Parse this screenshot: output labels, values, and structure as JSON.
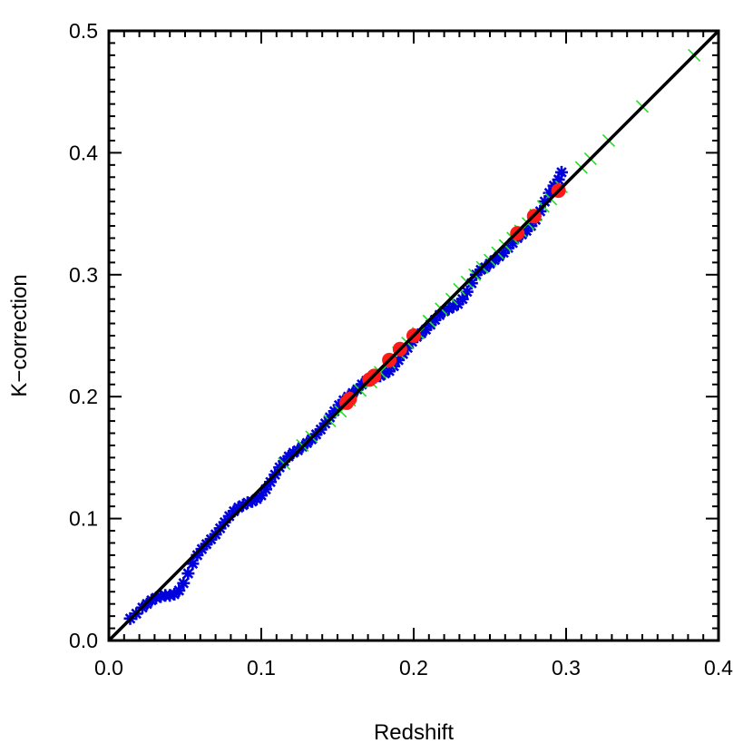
{
  "chart_data": {
    "type": "scatter",
    "title": "",
    "xlabel": "Redshift",
    "ylabel": "K−correction",
    "xlim": [
      0.0,
      0.4
    ],
    "ylim": [
      0.0,
      0.5
    ],
    "x_ticks": [
      "0.0",
      "0.1",
      "0.2",
      "0.3",
      "0.4"
    ],
    "y_ticks": [
      "0.0",
      "0.1",
      "0.2",
      "0.3",
      "0.4",
      "0.5"
    ],
    "grid": false,
    "legend": "none",
    "reference_line": {
      "from": [
        0.0,
        0.0
      ],
      "to": [
        0.4,
        0.5
      ],
      "color": "#000000"
    },
    "series": [
      {
        "marker": "asterisk",
        "color": "#0000dd",
        "points": [
          [
            0.014,
            0.018
          ],
          [
            0.018,
            0.022
          ],
          [
            0.022,
            0.027
          ],
          [
            0.025,
            0.03
          ],
          [
            0.028,
            0.033
          ],
          [
            0.031,
            0.035
          ],
          [
            0.034,
            0.036
          ],
          [
            0.037,
            0.037
          ],
          [
            0.04,
            0.037
          ],
          [
            0.043,
            0.038
          ],
          [
            0.046,
            0.041
          ],
          [
            0.049,
            0.047
          ],
          [
            0.052,
            0.055
          ],
          [
            0.055,
            0.063
          ],
          [
            0.058,
            0.07
          ],
          [
            0.061,
            0.075
          ],
          [
            0.064,
            0.079
          ],
          [
            0.067,
            0.083
          ],
          [
            0.07,
            0.087
          ],
          [
            0.073,
            0.092
          ],
          [
            0.076,
            0.097
          ],
          [
            0.079,
            0.102
          ],
          [
            0.082,
            0.106
          ],
          [
            0.085,
            0.109
          ],
          [
            0.088,
            0.111
          ],
          [
            0.091,
            0.113
          ],
          [
            0.094,
            0.114
          ],
          [
            0.097,
            0.116
          ],
          [
            0.1,
            0.119
          ],
          [
            0.103,
            0.124
          ],
          [
            0.106,
            0.13
          ],
          [
            0.109,
            0.136
          ],
          [
            0.112,
            0.142
          ],
          [
            0.115,
            0.147
          ],
          [
            0.118,
            0.151
          ],
          [
            0.121,
            0.154
          ],
          [
            0.124,
            0.156
          ],
          [
            0.127,
            0.159
          ],
          [
            0.13,
            0.162
          ],
          [
            0.133,
            0.165
          ],
          [
            0.136,
            0.169
          ],
          [
            0.139,
            0.173
          ],
          [
            0.142,
            0.178
          ],
          [
            0.145,
            0.183
          ],
          [
            0.148,
            0.188
          ],
          [
            0.151,
            0.193
          ],
          [
            0.154,
            0.197
          ],
          [
            0.157,
            0.2
          ],
          [
            0.16,
            0.203
          ],
          [
            0.163,
            0.206
          ],
          [
            0.166,
            0.21
          ],
          [
            0.169,
            0.213
          ],
          [
            0.172,
            0.215
          ],
          [
            0.175,
            0.216
          ],
          [
            0.178,
            0.217
          ],
          [
            0.181,
            0.219
          ],
          [
            0.184,
            0.221
          ],
          [
            0.187,
            0.225
          ],
          [
            0.19,
            0.23
          ],
          [
            0.193,
            0.235
          ],
          [
            0.196,
            0.24
          ],
          [
            0.199,
            0.245
          ],
          [
            0.202,
            0.249
          ],
          [
            0.205,
            0.252
          ],
          [
            0.208,
            0.255
          ],
          [
            0.211,
            0.259
          ],
          [
            0.214,
            0.263
          ],
          [
            0.217,
            0.267
          ],
          [
            0.22,
            0.27
          ],
          [
            0.223,
            0.272
          ],
          [
            0.226,
            0.274
          ],
          [
            0.229,
            0.276
          ],
          [
            0.232,
            0.28
          ],
          [
            0.235,
            0.286
          ],
          [
            0.238,
            0.293
          ],
          [
            0.241,
            0.3
          ],
          [
            0.244,
            0.304
          ],
          [
            0.247,
            0.306
          ],
          [
            0.25,
            0.309
          ],
          [
            0.253,
            0.312
          ],
          [
            0.256,
            0.315
          ],
          [
            0.259,
            0.318
          ],
          [
            0.262,
            0.322
          ],
          [
            0.265,
            0.326
          ],
          [
            0.268,
            0.33
          ],
          [
            0.271,
            0.333
          ],
          [
            0.274,
            0.336
          ],
          [
            0.277,
            0.34
          ],
          [
            0.28,
            0.345
          ],
          [
            0.283,
            0.352
          ],
          [
            0.286,
            0.36
          ],
          [
            0.289,
            0.367
          ],
          [
            0.292,
            0.373
          ],
          [
            0.295,
            0.378
          ],
          [
            0.297,
            0.384
          ]
        ]
      },
      {
        "marker": "x",
        "color": "#22dd22",
        "points": [
          [
            0.115,
            0.145
          ],
          [
            0.127,
            0.16
          ],
          [
            0.133,
            0.167
          ],
          [
            0.145,
            0.18
          ],
          [
            0.152,
            0.188
          ],
          [
            0.158,
            0.197
          ],
          [
            0.165,
            0.205
          ],
          [
            0.172,
            0.212
          ],
          [
            0.178,
            0.22
          ],
          [
            0.184,
            0.228
          ],
          [
            0.19,
            0.236
          ],
          [
            0.196,
            0.244
          ],
          [
            0.203,
            0.252
          ],
          [
            0.21,
            0.262
          ],
          [
            0.218,
            0.272
          ],
          [
            0.225,
            0.28
          ],
          [
            0.23,
            0.288
          ],
          [
            0.235,
            0.294
          ],
          [
            0.24,
            0.3
          ],
          [
            0.245,
            0.306
          ],
          [
            0.25,
            0.312
          ],
          [
            0.255,
            0.318
          ],
          [
            0.26,
            0.324
          ],
          [
            0.265,
            0.33
          ],
          [
            0.27,
            0.336
          ],
          [
            0.275,
            0.342
          ],
          [
            0.28,
            0.349
          ],
          [
            0.285,
            0.356
          ],
          [
            0.29,
            0.362
          ],
          [
            0.297,
            0.372
          ],
          [
            0.31,
            0.388
          ],
          [
            0.316,
            0.395
          ],
          [
            0.328,
            0.41
          ],
          [
            0.35,
            0.438
          ],
          [
            0.384,
            0.48
          ]
        ]
      },
      {
        "marker": "filled-circle",
        "color": "#ff1a1a",
        "points": [
          [
            0.156,
            0.195
          ],
          [
            0.158,
            0.198
          ],
          [
            0.171,
            0.214
          ],
          [
            0.174,
            0.217
          ],
          [
            0.184,
            0.23
          ],
          [
            0.191,
            0.239
          ],
          [
            0.2,
            0.25
          ],
          [
            0.268,
            0.334
          ],
          [
            0.279,
            0.348
          ],
          [
            0.295,
            0.369
          ]
        ]
      }
    ]
  }
}
